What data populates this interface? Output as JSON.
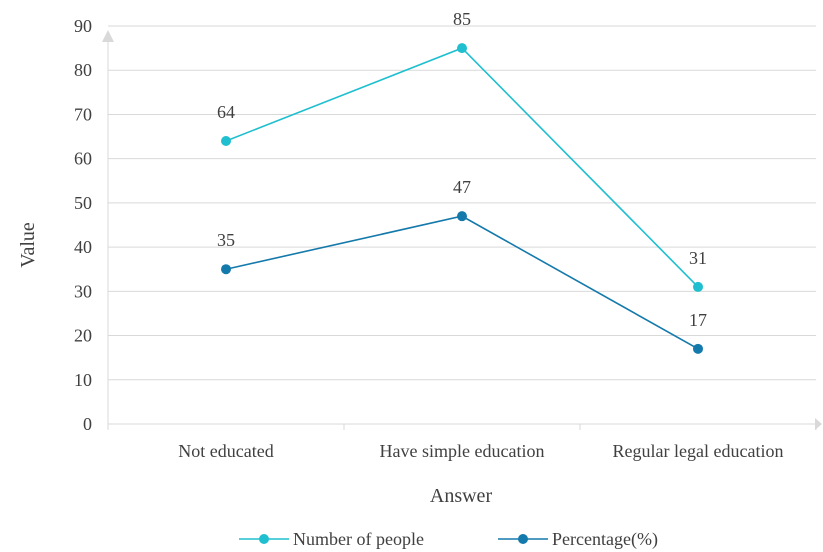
{
  "chart_data": {
    "type": "line",
    "title": "",
    "xlabel": "Answer",
    "ylabel": "Value",
    "ylim": [
      0,
      90
    ],
    "yticks": [
      0,
      10,
      20,
      30,
      40,
      50,
      60,
      70,
      80,
      90
    ],
    "grid": true,
    "legend": "bottom",
    "categories": [
      "Not educated",
      "Have simple education",
      "Regular legal education"
    ],
    "series": [
      {
        "name": "Number of people",
        "values": [
          64,
          85,
          31
        ],
        "color": "#1fbfcf"
      },
      {
        "name": "Percentage(%)",
        "values": [
          35,
          47,
          17
        ],
        "color": "#1479ab"
      }
    ]
  }
}
